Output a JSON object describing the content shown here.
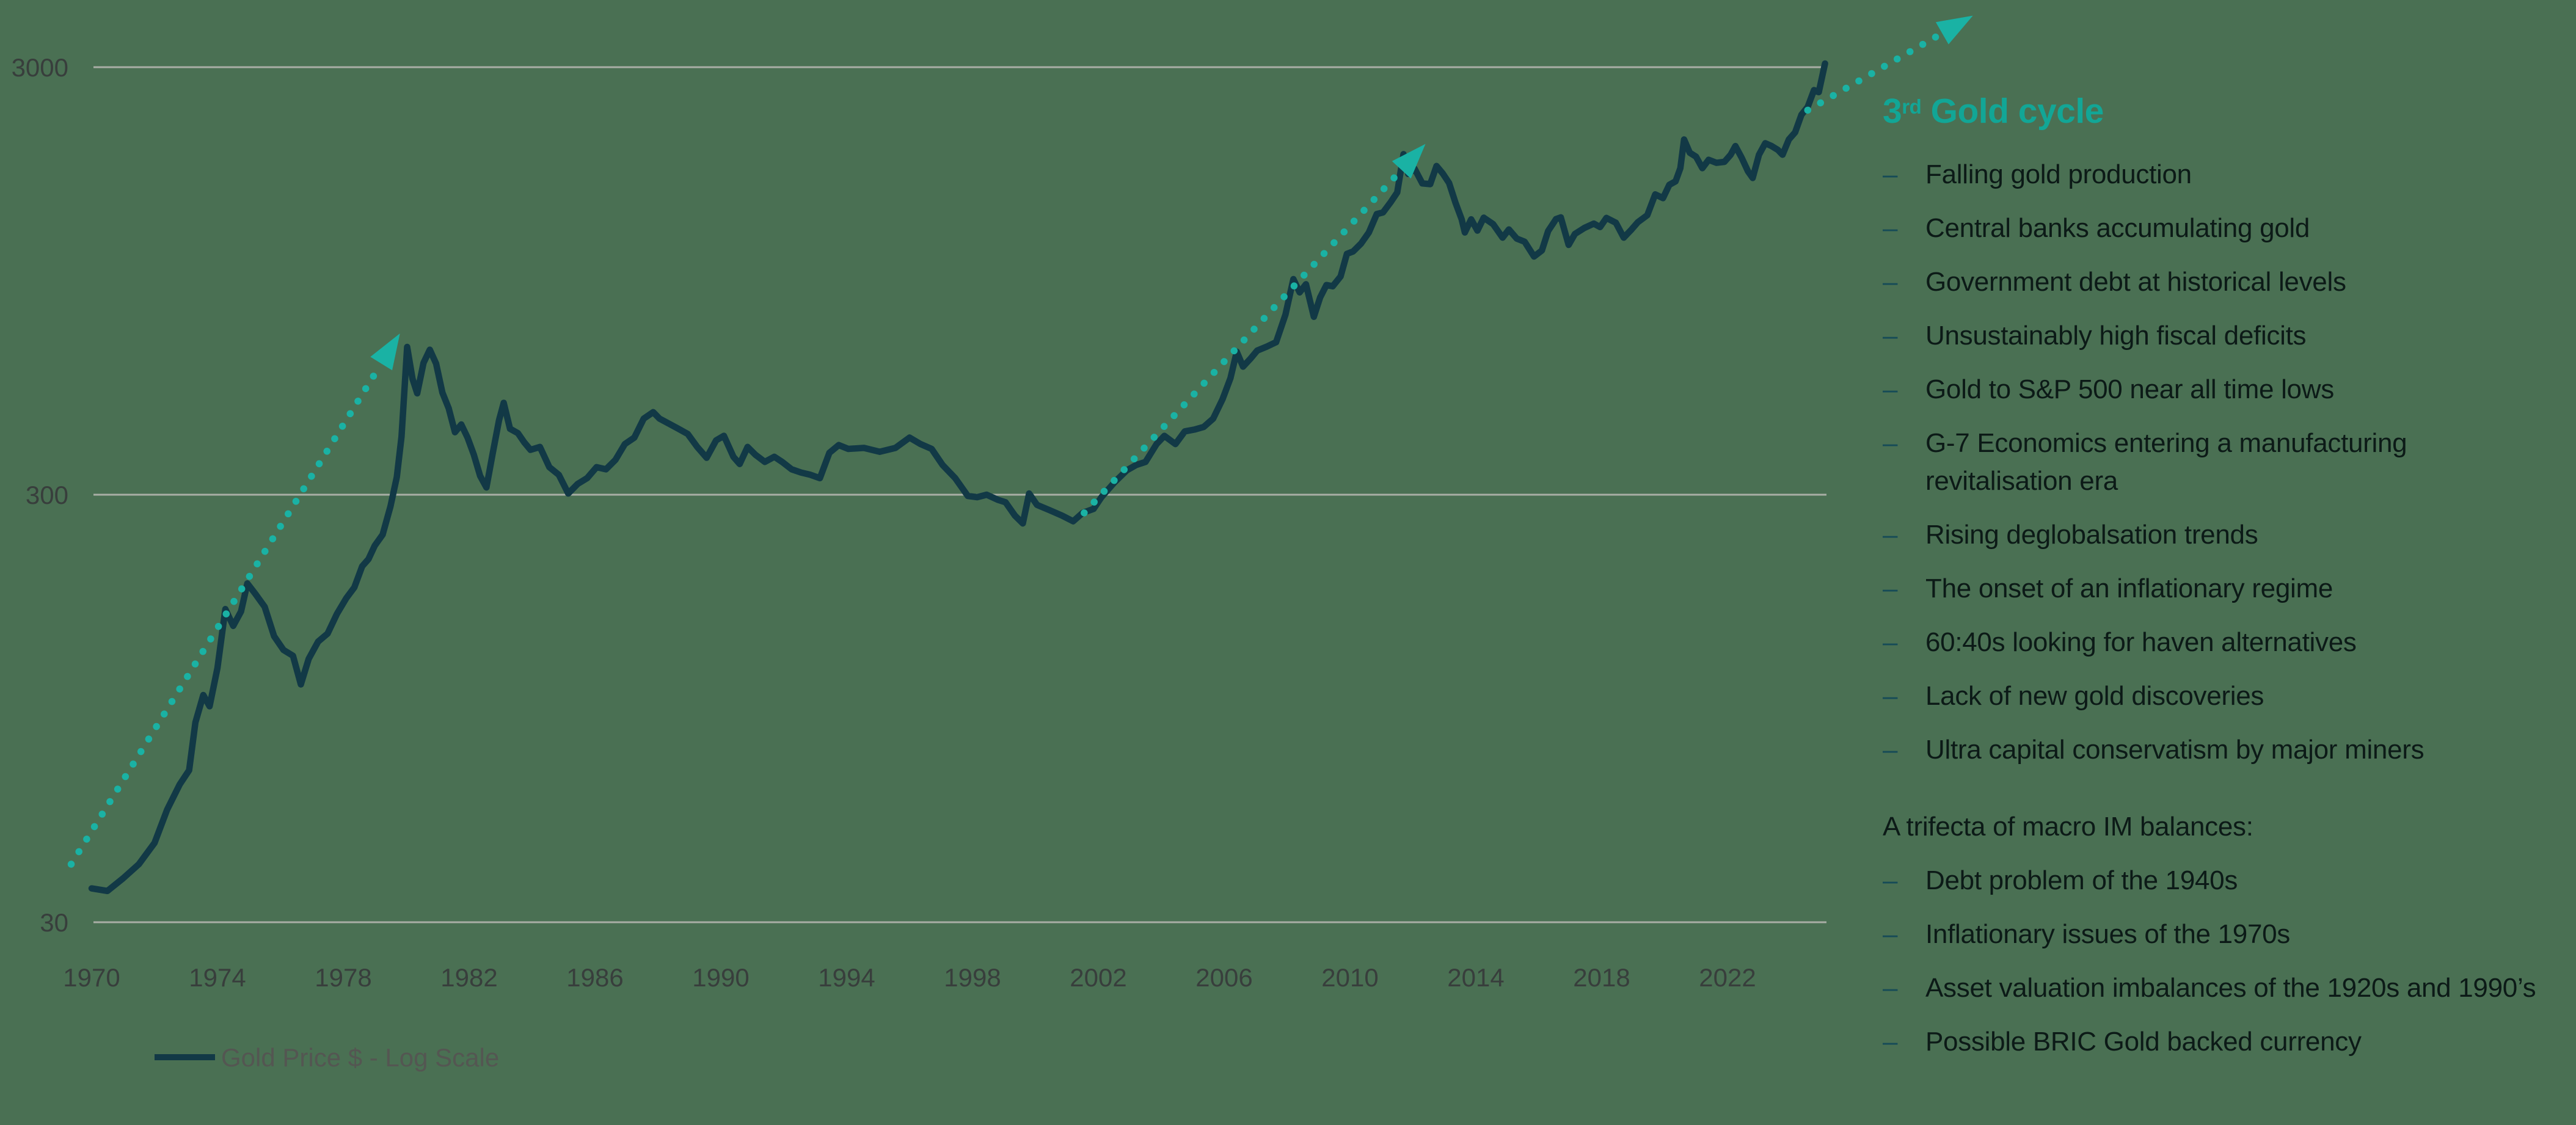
{
  "colors": {
    "background": "#4a7053",
    "line": "#123946",
    "accent": "#12a696",
    "arrow": "#1ab2a4",
    "gridline": "#a9aea6",
    "tick_text": "#383e3c",
    "legend_text": "#545652",
    "bullet_text": "#0c1a17",
    "dash": "#164b57"
  },
  "chart_data": {
    "type": "line",
    "title": "",
    "xlabel": "",
    "ylabel": "",
    "y_axis": {
      "scale": "log",
      "ticks": [
        3000,
        300,
        30
      ],
      "range": [
        30,
        3000
      ],
      "gridlines": true
    },
    "x_axis": {
      "ticks": [
        1970,
        1974,
        1978,
        1982,
        1986,
        1990,
        1994,
        1998,
        2002,
        2006,
        2010,
        2014,
        2018,
        2022
      ],
      "range": [
        1970,
        2025.5
      ],
      "gridlines": false
    },
    "legend": {
      "position": "bottom-left",
      "label": "Gold Price $ - Log Scale"
    },
    "series": [
      {
        "name": "Gold Price $ - Log Scale",
        "points": [
          [
            1970.0,
            36
          ],
          [
            1970.5,
            35.5
          ],
          [
            1971.0,
            38
          ],
          [
            1971.5,
            41
          ],
          [
            1972.0,
            46
          ],
          [
            1972.4,
            55
          ],
          [
            1972.8,
            63
          ],
          [
            1973.1,
            68
          ],
          [
            1973.3,
            88
          ],
          [
            1973.55,
            102
          ],
          [
            1973.75,
            96
          ],
          [
            1974.0,
            118
          ],
          [
            1974.25,
            162
          ],
          [
            1974.5,
            148
          ],
          [
            1974.75,
            160
          ],
          [
            1974.95,
            186
          ],
          [
            1975.2,
            176
          ],
          [
            1975.5,
            164
          ],
          [
            1975.8,
            140
          ],
          [
            1976.1,
            130
          ],
          [
            1976.4,
            126
          ],
          [
            1976.65,
            108
          ],
          [
            1976.9,
            124
          ],
          [
            1977.2,
            136
          ],
          [
            1977.5,
            142
          ],
          [
            1977.8,
            158
          ],
          [
            1978.1,
            172
          ],
          [
            1978.35,
            182
          ],
          [
            1978.6,
            204
          ],
          [
            1978.8,
            212
          ],
          [
            1979.0,
            228
          ],
          [
            1979.25,
            242
          ],
          [
            1979.5,
            282
          ],
          [
            1979.7,
            330
          ],
          [
            1979.85,
            410
          ],
          [
            1980.03,
            665
          ],
          [
            1980.2,
            560
          ],
          [
            1980.35,
            518
          ],
          [
            1980.55,
            610
          ],
          [
            1980.75,
            655
          ],
          [
            1980.95,
            608
          ],
          [
            1981.15,
            520
          ],
          [
            1981.35,
            478
          ],
          [
            1981.55,
            420
          ],
          [
            1981.75,
            438
          ],
          [
            1981.95,
            408
          ],
          [
            1982.15,
            372
          ],
          [
            1982.35,
            332
          ],
          [
            1982.55,
            312
          ],
          [
            1982.75,
            375
          ],
          [
            1982.95,
            448
          ],
          [
            1983.1,
            492
          ],
          [
            1983.3,
            428
          ],
          [
            1983.55,
            418
          ],
          [
            1983.75,
            398
          ],
          [
            1983.95,
            382
          ],
          [
            1984.25,
            388
          ],
          [
            1984.55,
            348
          ],
          [
            1984.85,
            334
          ],
          [
            1985.15,
            302
          ],
          [
            1985.45,
            318
          ],
          [
            1985.75,
            328
          ],
          [
            1986.05,
            348
          ],
          [
            1986.35,
            344
          ],
          [
            1986.65,
            362
          ],
          [
            1986.95,
            394
          ],
          [
            1987.25,
            408
          ],
          [
            1987.55,
            452
          ],
          [
            1987.85,
            468
          ],
          [
            1988.05,
            452
          ],
          [
            1988.35,
            440
          ],
          [
            1988.65,
            428
          ],
          [
            1988.95,
            416
          ],
          [
            1989.25,
            388
          ],
          [
            1989.55,
            366
          ],
          [
            1989.85,
            402
          ],
          [
            1990.1,
            412
          ],
          [
            1990.4,
            368
          ],
          [
            1990.6,
            354
          ],
          [
            1990.85,
            388
          ],
          [
            1991.1,
            372
          ],
          [
            1991.4,
            358
          ],
          [
            1991.7,
            368
          ],
          [
            1991.95,
            358
          ],
          [
            1992.25,
            344
          ],
          [
            1992.55,
            338
          ],
          [
            1992.85,
            334
          ],
          [
            1993.15,
            328
          ],
          [
            1993.45,
            376
          ],
          [
            1993.75,
            392
          ],
          [
            1994.05,
            384
          ],
          [
            1994.55,
            386
          ],
          [
            1995.05,
            378
          ],
          [
            1995.55,
            386
          ],
          [
            1996.0,
            408
          ],
          [
            1996.35,
            394
          ],
          [
            1996.7,
            384
          ],
          [
            1997.05,
            352
          ],
          [
            1997.45,
            328
          ],
          [
            1997.85,
            298
          ],
          [
            1998.15,
            296
          ],
          [
            1998.45,
            300
          ],
          [
            1998.8,
            292
          ],
          [
            1999.05,
            288
          ],
          [
            1999.35,
            268
          ],
          [
            1999.6,
            257
          ],
          [
            1999.8,
            302
          ],
          [
            2000.05,
            284
          ],
          [
            2000.45,
            276
          ],
          [
            2000.85,
            268
          ],
          [
            2001.2,
            260
          ],
          [
            2001.5,
            272
          ],
          [
            2001.85,
            278
          ],
          [
            2002.1,
            296
          ],
          [
            2002.5,
            320
          ],
          [
            2002.9,
            342
          ],
          [
            2003.2,
            352
          ],
          [
            2003.5,
            358
          ],
          [
            2003.85,
            394
          ],
          [
            2004.1,
            412
          ],
          [
            2004.45,
            394
          ],
          [
            2004.75,
            422
          ],
          [
            2005.05,
            426
          ],
          [
            2005.35,
            432
          ],
          [
            2005.65,
            452
          ],
          [
            2005.95,
            502
          ],
          [
            2006.2,
            562
          ],
          [
            2006.4,
            648
          ],
          [
            2006.6,
            598
          ],
          [
            2006.85,
            626
          ],
          [
            2007.05,
            652
          ],
          [
            2007.35,
            666
          ],
          [
            2007.65,
            682
          ],
          [
            2007.95,
            792
          ],
          [
            2008.2,
            958
          ],
          [
            2008.4,
            892
          ],
          [
            2008.6,
            932
          ],
          [
            2008.85,
            782
          ],
          [
            2009.05,
            868
          ],
          [
            2009.25,
            928
          ],
          [
            2009.45,
            922
          ],
          [
            2009.7,
            972
          ],
          [
            2009.9,
            1098
          ],
          [
            2010.1,
            1112
          ],
          [
            2010.35,
            1160
          ],
          [
            2010.6,
            1232
          ],
          [
            2010.85,
            1360
          ],
          [
            2011.05,
            1372
          ],
          [
            2011.3,
            1452
          ],
          [
            2011.5,
            1528
          ],
          [
            2011.7,
            1878
          ],
          [
            2011.85,
            1688
          ],
          [
            2012.05,
            1738
          ],
          [
            2012.3,
            1604
          ],
          [
            2012.55,
            1598
          ],
          [
            2012.75,
            1762
          ],
          [
            2012.95,
            1692
          ],
          [
            2013.15,
            1608
          ],
          [
            2013.35,
            1448
          ],
          [
            2013.55,
            1322
          ],
          [
            2013.65,
            1232
          ],
          [
            2013.85,
            1322
          ],
          [
            2014.05,
            1244
          ],
          [
            2014.25,
            1334
          ],
          [
            2014.55,
            1288
          ],
          [
            2014.85,
            1198
          ],
          [
            2015.05,
            1252
          ],
          [
            2015.3,
            1192
          ],
          [
            2015.55,
            1172
          ],
          [
            2015.85,
            1082
          ],
          [
            2016.1,
            1118
          ],
          [
            2016.3,
            1242
          ],
          [
            2016.55,
            1324
          ],
          [
            2016.7,
            1336
          ],
          [
            2016.95,
            1152
          ],
          [
            2017.15,
            1222
          ],
          [
            2017.45,
            1262
          ],
          [
            2017.75,
            1292
          ],
          [
            2017.95,
            1268
          ],
          [
            2018.15,
            1332
          ],
          [
            2018.45,
            1298
          ],
          [
            2018.7,
            1198
          ],
          [
            2018.95,
            1252
          ],
          [
            2019.15,
            1302
          ],
          [
            2019.45,
            1352
          ],
          [
            2019.7,
            1512
          ],
          [
            2019.95,
            1482
          ],
          [
            2020.15,
            1592
          ],
          [
            2020.35,
            1622
          ],
          [
            2020.5,
            1742
          ],
          [
            2020.62,
            2032
          ],
          [
            2020.8,
            1892
          ],
          [
            2021.0,
            1852
          ],
          [
            2021.2,
            1742
          ],
          [
            2021.4,
            1822
          ],
          [
            2021.65,
            1792
          ],
          [
            2021.9,
            1802
          ],
          [
            2022.1,
            1872
          ],
          [
            2022.25,
            1962
          ],
          [
            2022.45,
            1842
          ],
          [
            2022.65,
            1712
          ],
          [
            2022.8,
            1652
          ],
          [
            2023.0,
            1872
          ],
          [
            2023.2,
            1992
          ],
          [
            2023.4,
            1962
          ],
          [
            2023.6,
            1922
          ],
          [
            2023.75,
            1872
          ],
          [
            2023.95,
            2032
          ],
          [
            2024.15,
            2112
          ],
          [
            2024.35,
            2322
          ],
          [
            2024.55,
            2422
          ],
          [
            2024.75,
            2652
          ],
          [
            2024.9,
            2622
          ],
          [
            2025.1,
            3060
          ]
        ]
      }
    ],
    "annotations": {
      "arrows": [
        {
          "name": "1st-cycle-arrow",
          "from": [
            1969.35,
            41
          ],
          "to": [
            1979.8,
            715
          ]
        },
        {
          "name": "2nd-cycle-arrow",
          "from": [
            2001.55,
            272
          ],
          "to": [
            2012.4,
            1985
          ]
        },
        {
          "name": "3rd-cycle-arrow",
          "from": [
            2024.55,
            2380
          ],
          "to": [
            2029.8,
            3960
          ]
        }
      ]
    }
  },
  "panel": {
    "heading": {
      "prefix": "3",
      "sup": "rd",
      "rest": " Gold cycle"
    },
    "dash_glyph": "–",
    "bullets": [
      "Falling gold production",
      "Central banks accumulating gold",
      "Government debt at historical levels",
      "Unsustainably high fiscal deficits",
      "Gold to S&P 500 near all time lows",
      "G-7 Economics entering a manufacturing revitalisation era",
      "Rising deglobalsation trends",
      "The onset of an inflationary regime",
      "60:40s looking for haven alternatives",
      "Lack of new gold discoveries",
      "Ultra capital conservatism by major miners"
    ],
    "subheading": "A trifecta of macro IM balances:",
    "bullets2": [
      "Debt problem of the 1940s",
      "Inflationary issues of the 1970s",
      "Asset valuation imbalances of the 1920s and 1990’s",
      "Possible BRIC Gold backed currency"
    ]
  }
}
